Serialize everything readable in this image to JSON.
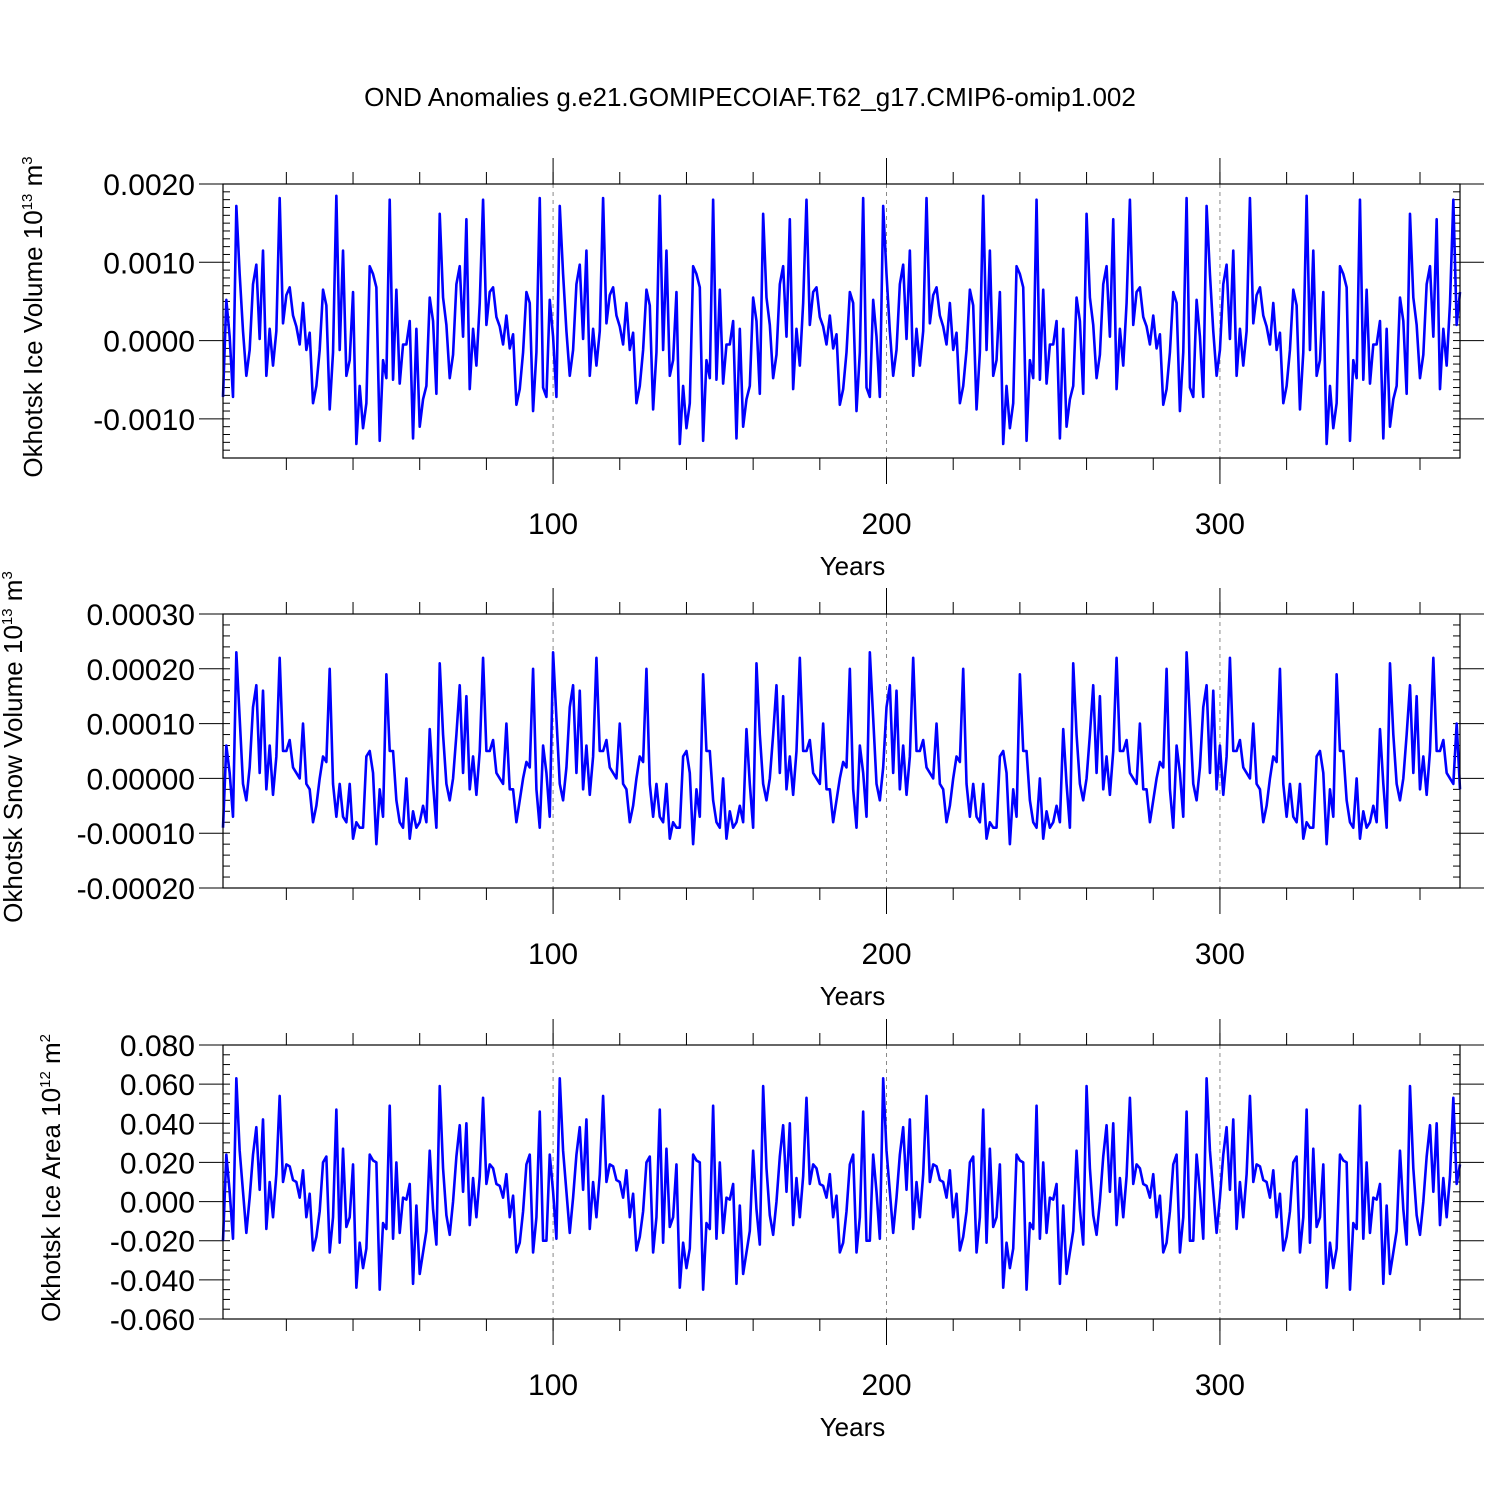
{
  "chart_data": {
    "type": "line",
    "title": "OND Anomalies g.e21.GOMIPECOIAF.T62_g17.CMIP6-omip1.002",
    "line_color": "#0000ff",
    "reference_line_color": "#888888",
    "panels": [
      {
        "ylabel": "Okhotsk Ice Volume 10",
        "ylabel_exponent": "13",
        "ylabel_unit": "m",
        "ylabel_unit_exponent": "3",
        "xlabel": "Years",
        "xlim": [
          1,
          372
        ],
        "ylim": [
          -0.0015,
          0.002
        ],
        "yticks": [
          -0.001,
          0.0,
          0.001,
          0.002
        ],
        "ytick_labels": [
          "-0.0010",
          "0.0000",
          "0.0010",
          "0.0020"
        ],
        "ytick_minor_step": 0.0001,
        "xticks": [
          100,
          200,
          300
        ],
        "xtick_labels": [
          "100",
          "200",
          "300"
        ],
        "xtick_minor_step": 20,
        "vlines": [
          100,
          200,
          300
        ],
        "base_cycle": [
          -0.00072,
          0.00052,
          5e-05,
          -0.00072,
          0.00172,
          0.00085,
          0.00012,
          -0.00045,
          -0.00012,
          0.00072,
          0.00097,
          2e-05,
          0.00115,
          -0.00045,
          0.00015,
          -0.00032,
          0.00012,
          0.00182,
          0.00022,
          0.00058,
          0.00068,
          0.00032,
          0.00018,
          -5e-05,
          0.00048,
          -0.00012,
          0.0001,
          -0.0008,
          -0.00058,
          -0.00012,
          0.00065,
          0.00045,
          -0.00088,
          -0.00015,
          0.00185,
          -0.00012,
          0.00115,
          -0.00045,
          -0.00025,
          0.00062,
          -0.00132,
          -0.00058,
          -0.00112,
          -0.0008,
          0.00095,
          0.00085,
          0.00068,
          -0.00128,
          -0.00025,
          -0.00048,
          0.0018,
          -0.0005,
          0.00065,
          -0.00055,
          -5e-05,
          -5e-05,
          0.00025,
          -0.00125,
          0.00015,
          -0.0011,
          -0.00075,
          -0.00058,
          0.00055,
          0.00025,
          -0.00068,
          0.00162,
          0.00055,
          0.0002,
          -0.00048,
          -0.00018,
          0.00072,
          0.00095,
          5e-05,
          0.00155,
          -0.00062,
          0.00015,
          -0.00032,
          0.00048,
          0.0018,
          0.0002,
          0.00062,
          0.00068,
          0.0003,
          0.00018,
          -5e-05,
          0.00032,
          -0.0001,
          8e-05,
          -0.00082,
          -0.00062,
          -0.00015,
          0.00062,
          0.00048,
          -0.0009,
          -0.00015,
          0.00182,
          -0.0006
        ],
        "drift": 0.0
      },
      {
        "ylabel": "Okhotsk Snow Volume 10",
        "ylabel_exponent": "13",
        "ylabel_unit": "m",
        "ylabel_unit_exponent": "3",
        "xlabel": "Years",
        "xlim": [
          1,
          372
        ],
        "ylim": [
          -0.0002,
          0.0003
        ],
        "yticks": [
          -0.0002,
          -0.0001,
          0.0,
          0.0001,
          0.0002,
          0.0003
        ],
        "ytick_labels": [
          "-0.00020",
          "-0.00010",
          "0.00000",
          "0.00010",
          "0.00020",
          "0.00030"
        ],
        "ytick_minor_step": 2e-05,
        "xticks": [
          100,
          200,
          300
        ],
        "xtick_labels": [
          "100",
          "200",
          "300"
        ],
        "xtick_minor_step": 20,
        "vlines": [
          100,
          200,
          300
        ],
        "base_cycle": [
          -9e-05,
          6e-05,
          1e-05,
          -7e-05,
          0.00023,
          0.00011,
          -1e-05,
          -4e-05,
          2e-05,
          0.00013,
          0.00017,
          1e-05,
          0.00016,
          -2e-05,
          6e-05,
          -3e-05,
          4e-05,
          0.00022,
          5e-05,
          5e-05,
          7e-05,
          2e-05,
          1e-05,
          0.0,
          0.0001,
          -1e-05,
          -2e-05,
          -8e-05,
          -5e-05,
          0.0,
          4e-05,
          3e-05,
          0.0002,
          -1e-05,
          -7e-05,
          -1e-05,
          -7e-05,
          -8e-05,
          -1e-05,
          -0.00011,
          -8e-05,
          -9e-05,
          -9e-05,
          4e-05,
          5e-05,
          1e-05,
          -0.00012,
          -2e-05,
          -7e-05,
          0.00019,
          5e-05,
          5e-05,
          -4e-05,
          -8e-05,
          -9e-05,
          0.0,
          -0.00011,
          -6e-05,
          -9e-05,
          -8e-05,
          -5e-05,
          -8e-05,
          9e-05,
          -1e-05,
          -9e-05,
          0.00021,
          8e-05,
          -1e-05,
          -4e-05,
          0.0,
          8e-05,
          0.00017,
          1e-05,
          0.00015,
          -2e-05,
          4e-05,
          -3e-05,
          5e-05,
          0.00022,
          5e-05,
          5e-05,
          7e-05,
          1e-05,
          0.0,
          -1e-05,
          0.0001,
          -2e-05,
          -2e-05,
          -8e-05,
          -4e-05,
          0.0,
          3e-05,
          2e-05,
          0.0002,
          -2e-05
        ],
        "drift": 0.0
      },
      {
        "ylabel": "Okhotsk Ice Area 10",
        "ylabel_exponent": "12",
        "ylabel_unit": "m",
        "ylabel_unit_exponent": "2",
        "xlabel": "Years",
        "xlim": [
          1,
          372
        ],
        "ylim": [
          -0.06,
          0.08
        ],
        "yticks": [
          -0.06,
          -0.04,
          -0.02,
          0.0,
          0.02,
          0.04,
          0.06,
          0.08
        ],
        "ytick_labels": [
          "-0.060",
          "-0.040",
          "-0.020",
          "0.000",
          "0.020",
          "0.040",
          "0.060",
          "0.080"
        ],
        "ytick_minor_step": 0.005,
        "xticks": [
          100,
          200,
          300
        ],
        "xtick_labels": [
          "100",
          "200",
          "300"
        ],
        "xtick_minor_step": 20,
        "vlines": [
          100,
          200,
          300
        ],
        "base_cycle": [
          -0.02,
          0.024,
          0.005,
          -0.019,
          0.063,
          0.026,
          0.005,
          -0.016,
          0.002,
          0.024,
          0.038,
          0.006,
          0.042,
          -0.014,
          0.01,
          -0.008,
          0.014,
          0.054,
          0.01,
          0.019,
          0.018,
          0.011,
          0.01,
          0.002,
          0.016,
          -0.008,
          0.004,
          -0.025,
          -0.018,
          -0.005,
          0.02,
          0.023,
          -0.026,
          -0.008,
          0.047,
          -0.021,
          0.027,
          -0.013,
          -0.008,
          0.019,
          -0.044,
          -0.021,
          -0.034,
          -0.024,
          0.024,
          0.021,
          0.02,
          -0.045,
          -0.011,
          -0.014,
          0.049,
          -0.019,
          0.02,
          -0.016,
          0.002,
          0.001,
          0.009,
          -0.042,
          -0.002,
          -0.037,
          -0.026,
          -0.015,
          0.026,
          -0.004,
          -0.022,
          0.059,
          0.017,
          -0.007,
          -0.017,
          0.0,
          0.023,
          0.039,
          0.005,
          0.04,
          -0.012,
          0.012,
          -0.008,
          0.013,
          0.053,
          0.009,
          0.019,
          0.017,
          0.009,
          0.008,
          0.002,
          0.014,
          -0.008,
          0.003,
          -0.026,
          -0.021,
          -0.005,
          0.019,
          0.024,
          -0.026,
          -0.008,
          0.046,
          -0.02
        ],
        "drift": 0.0
      }
    ]
  }
}
